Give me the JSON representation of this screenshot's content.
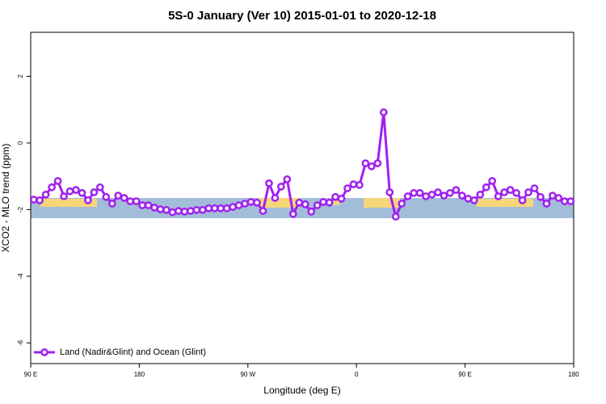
{
  "chart_data": {
    "type": "line",
    "title": "5S-0 January (Ver 10)   2015-01-01 to 2020-12-18",
    "x_label": "Longitude (deg E)",
    "y_label": "XCO2 - MLO trend (ppm)",
    "x": [
      92.5,
      97.5,
      102.5,
      107.5,
      112.5,
      117.5,
      122.5,
      127.5,
      132.5,
      137.5,
      142.5,
      147.5,
      152.5,
      157.5,
      162.5,
      167.5,
      172.5,
      177.5,
      182.5,
      187.5,
      192.5,
      197.5,
      202.5,
      207.5,
      212.5,
      217.5,
      222.5,
      227.5,
      232.5,
      237.5,
      242.5,
      247.5,
      252.5,
      257.5,
      262.5,
      267.5,
      272.5,
      277.5,
      282.5,
      287.5,
      292.5,
      297.5,
      302.5,
      307.5,
      312.5,
      317.5,
      322.5,
      327.5,
      332.5,
      337.5,
      342.5,
      347.5,
      352.5,
      357.5,
      362.5,
      367.5,
      372.5,
      377.5,
      382.5,
      387.5,
      392.5,
      397.5,
      402.5,
      407.5,
      412.5,
      417.5,
      422.5,
      427.5,
      432.5,
      437.5,
      442.5,
      447.5,
      452.5,
      457.5,
      462.5,
      467.5,
      472.5,
      477.5,
      482.5,
      487.5,
      492.5,
      497.5,
      502.5,
      507.5,
      512.5,
      517.5,
      522.5,
      527.5,
      532.5,
      537.5
    ],
    "series": [
      {
        "name": "Land (Nadir&Glint) and Ocean (Glint)",
        "color": "#a020f0",
        "values": [
          -1.7,
          -1.72,
          -1.55,
          -1.33,
          -1.14,
          -1.6,
          -1.45,
          -1.41,
          -1.5,
          -1.72,
          -1.48,
          -1.33,
          -1.62,
          -1.82,
          -1.58,
          -1.65,
          -1.75,
          -1.75,
          -1.87,
          -1.87,
          -1.94,
          -1.99,
          -2.01,
          -2.08,
          -2.04,
          -2.06,
          -2.04,
          -2.01,
          -2.01,
          -1.96,
          -1.96,
          -1.96,
          -1.96,
          -1.92,
          -1.87,
          -1.82,
          -1.77,
          -1.79,
          -2.04,
          -1.21,
          -1.65,
          -1.31,
          -1.09,
          -2.13,
          -1.79,
          -1.84,
          -2.06,
          -1.87,
          -1.77,
          -1.79,
          -1.62,
          -1.67,
          -1.36,
          -1.24,
          -1.26,
          -0.61,
          -0.7,
          -0.61,
          0.92,
          -1.48,
          -2.21,
          -1.82,
          -1.6,
          -1.5,
          -1.5,
          -1.6,
          -1.55,
          -1.48,
          -1.58,
          -1.5,
          -1.41,
          -1.58,
          -1.67,
          -1.72,
          -1.55,
          -1.33,
          -1.14,
          -1.6,
          -1.48,
          -1.41,
          -1.5,
          -1.72,
          -1.48,
          -1.36,
          -1.62,
          -1.82,
          -1.58,
          -1.65,
          -1.75,
          -1.75
        ]
      }
    ],
    "xlim": [
      90,
      540
    ],
    "xticks": [
      {
        "value": 90,
        "label": "90 E"
      },
      180,
      {
        "value": 270,
        "label": "90 W"
      },
      {
        "value": 360,
        "label": "0"
      },
      {
        "value": 450,
        "label": "90 E"
      },
      {
        "value": 540,
        "label": "180"
      }
    ],
    "ylim": [
      -6.62,
      3.32
    ],
    "yticks": [
      -6,
      -4,
      -2,
      0,
      2
    ],
    "legend": "bottom-left"
  }
}
